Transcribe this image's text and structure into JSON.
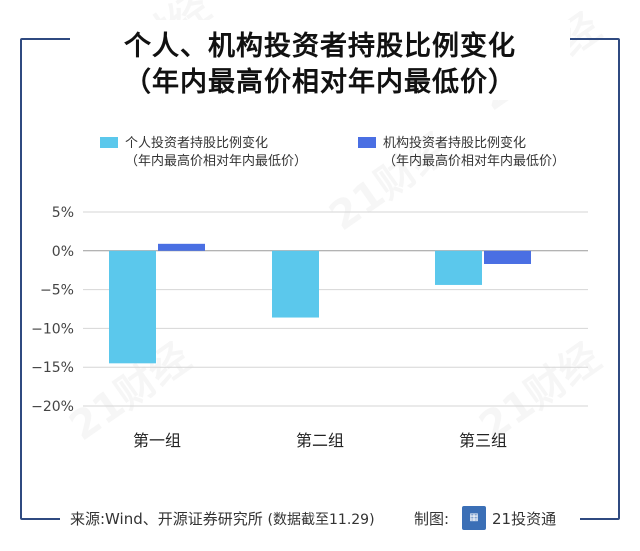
{
  "title_line1": "个人、机构投资者持股比例变化",
  "title_line2": "（年内最高价相对年内最低价）",
  "footer": {
    "source": "来源:Wind、开源证券研究所",
    "note": "(数据截至11.29)",
    "maker_label": "制图:",
    "maker_name": "21投资通"
  },
  "watermark": "21财经",
  "colors": {
    "personal": "#5bc8ec",
    "institution": "#4a6fe3",
    "frame": "#2f4a80"
  },
  "chart_data": {
    "type": "bar",
    "title": "",
    "xlabel": "",
    "ylabel": "",
    "categories": [
      "第一组",
      "第二组",
      "第三组"
    ],
    "series": [
      {
        "name": "个人投资者持股比例变化",
        "name_sub": "（年内最高价相对年内最低价）",
        "values": [
          -14.5,
          -8.6,
          -4.4
        ]
      },
      {
        "name": "机构投资者持股比例变化",
        "name_sub": "（年内最高价相对年内最低价）",
        "values": [
          0.9,
          0.0,
          -1.7
        ]
      }
    ],
    "ylim": [
      -20,
      5
    ],
    "yticks": [
      5,
      0,
      -5,
      -10,
      -15,
      -20
    ],
    "ytick_labels": [
      "5%",
      "0%",
      "−5%",
      "−10%",
      "−15%",
      "−20%"
    ],
    "grid": true,
    "legend": "top"
  }
}
